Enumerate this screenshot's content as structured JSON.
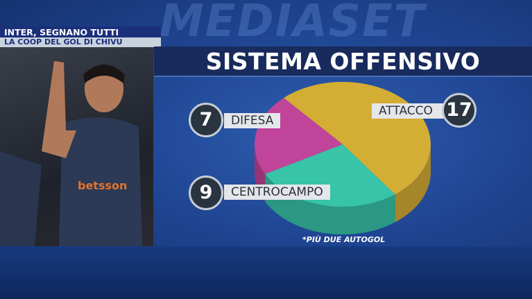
{
  "watermark": "MEDIASET",
  "headline": {
    "line1": "INTER, SEGNANO TUTTI",
    "line2": "LA COOP DEL GOL DI CHIVU"
  },
  "chart_data": {
    "type": "pie",
    "title": "SISTEMA OFFENSIVO",
    "categories": [
      "ATTACCO",
      "CENTROCAMPO",
      "DIFESA"
    ],
    "values": [
      17,
      9,
      7
    ],
    "colors": [
      "#d4ad34",
      "#37c4a8",
      "#c0449a"
    ],
    "annotation": "*PIÙ DUE AUTOGOL"
  }
}
